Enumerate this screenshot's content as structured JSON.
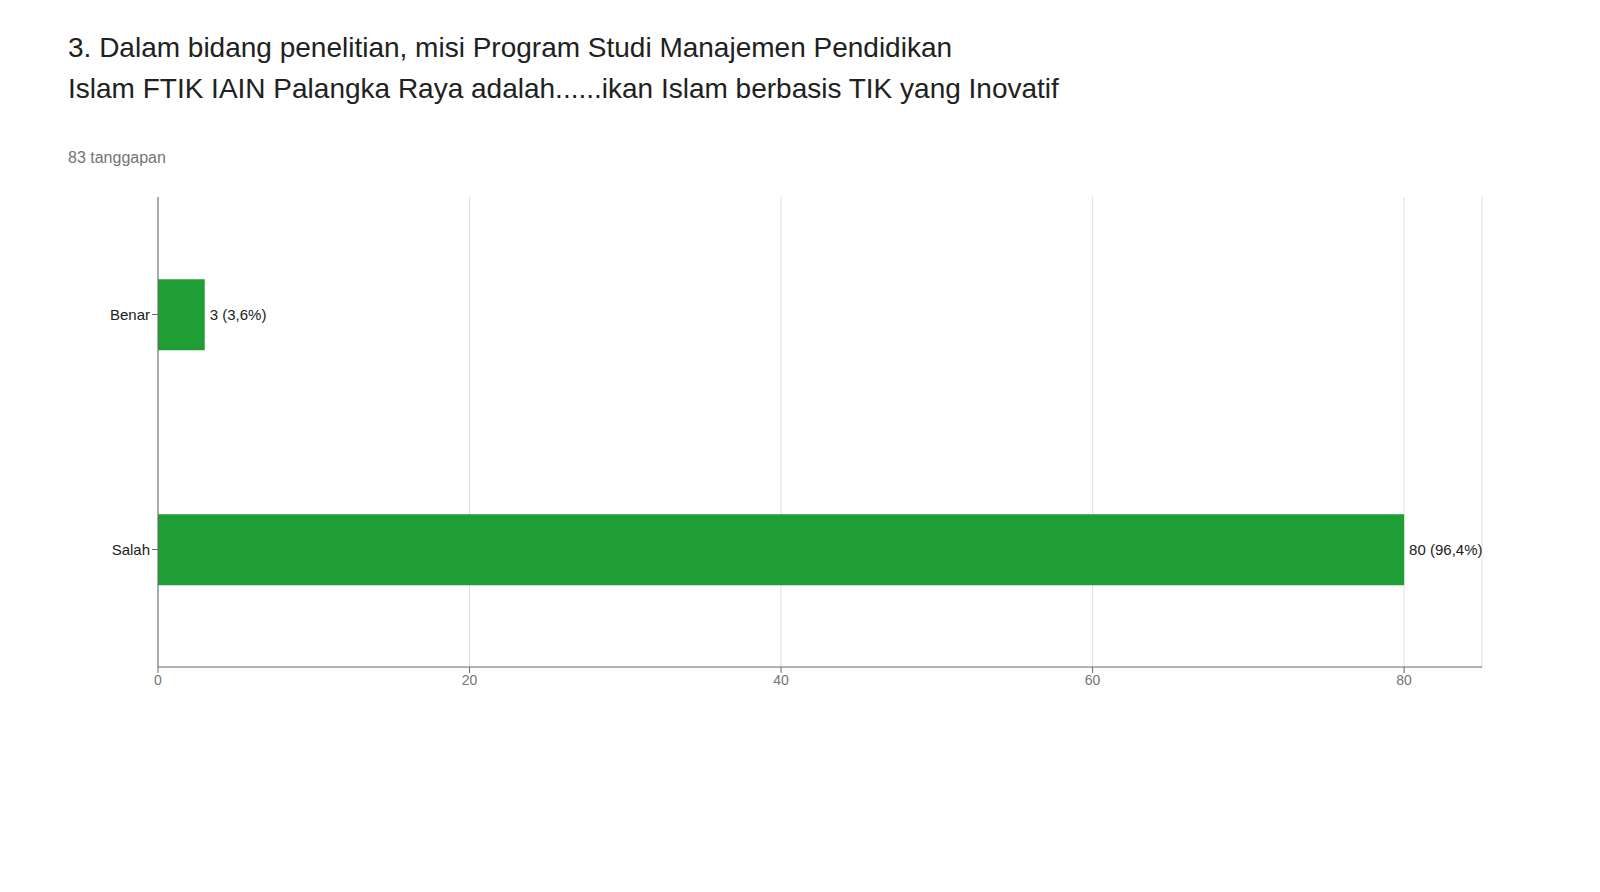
{
  "chart_data": {
    "type": "bar",
    "orientation": "horizontal",
    "title": "3. Dalam bidang penelitian, misi Program Studi Manajemen Pendidikan\nIslam FTIK IAIN Palangka Raya adalah......ikan Islam berbasis TIK yang Inovatif",
    "subtitle": "83 tanggapan",
    "categories": [
      "Salah",
      "Benar"
    ],
    "values": [
      80,
      3
    ],
    "value_labels": [
      "80 (96,4%)",
      "3 (3,6%)"
    ],
    "data_labels": true,
    "color": "#1e9e34",
    "xlim": [
      0,
      85
    ],
    "xticks": [
      0,
      20,
      40,
      60,
      80
    ],
    "grid": true
  }
}
